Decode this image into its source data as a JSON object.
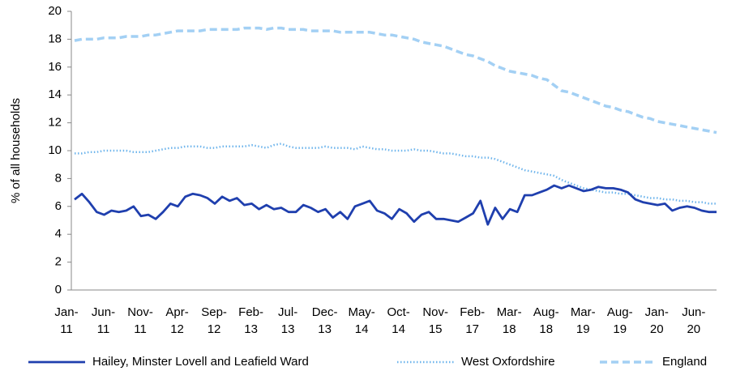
{
  "chart_data": {
    "type": "line",
    "y_label": "% of all households",
    "categories": [
      "Jan-11",
      null,
      null,
      null,
      null,
      "Jun-11",
      null,
      null,
      null,
      null,
      "Nov-11",
      null,
      null,
      null,
      null,
      "Apr-12",
      null,
      null,
      null,
      null,
      "Sep-12",
      null,
      null,
      null,
      null,
      "Feb-13",
      null,
      null,
      null,
      null,
      "Jul-13",
      null,
      null,
      null,
      null,
      "Dec-13",
      null,
      null,
      null,
      null,
      "May-14",
      null,
      null,
      null,
      null,
      "Oct-14",
      null,
      null,
      null,
      null,
      "Nov-15",
      null,
      null,
      null,
      null,
      "Feb-17",
      null,
      null,
      null,
      null,
      "Mar-18",
      null,
      null,
      null,
      null,
      "Aug-18",
      null,
      null,
      null,
      null,
      "Mar-19",
      null,
      null,
      null,
      null,
      "Aug-19",
      null,
      null,
      null,
      null,
      "Jan-20",
      null,
      null,
      null,
      null,
      "Jun-20",
      null,
      null
    ],
    "series": [
      {
        "name": "Hailey, Minster Lovell and Leafield Ward",
        "color": "#1f3fae",
        "style": "solid",
        "values": [
          6.5,
          6.9,
          6.3,
          5.6,
          5.4,
          5.7,
          5.6,
          5.7,
          6.0,
          5.3,
          5.4,
          5.1,
          5.6,
          6.2,
          6.0,
          6.7,
          6.9,
          6.8,
          6.6,
          6.2,
          6.7,
          6.4,
          6.6,
          6.1,
          6.2,
          5.8,
          6.1,
          5.8,
          5.9,
          5.6,
          5.6,
          6.1,
          5.9,
          5.6,
          5.8,
          5.2,
          5.6,
          5.1,
          6.0,
          6.2,
          6.4,
          5.7,
          5.5,
          5.1,
          5.8,
          5.5,
          4.9,
          5.4,
          5.6,
          5.1,
          5.1,
          5.0,
          4.9,
          5.2,
          5.5,
          6.4,
          4.7,
          5.9,
          5.1,
          5.8,
          5.6,
          6.8,
          6.8,
          7.0,
          7.2,
          7.5,
          7.3,
          7.5,
          7.3,
          7.1,
          7.2,
          7.4,
          7.3,
          7.3,
          7.2,
          7.0,
          6.5,
          6.3,
          6.2,
          6.1,
          6.2,
          5.7,
          5.9,
          6.0,
          5.9,
          5.7,
          5.6,
          5.6
        ]
      },
      {
        "name": "West Oxfordshire",
        "color": "#6fb5ec",
        "style": "dotted",
        "values": [
          9.8,
          9.8,
          9.9,
          9.9,
          10.0,
          10.0,
          10.0,
          10.0,
          9.9,
          9.9,
          9.9,
          10.0,
          10.1,
          10.2,
          10.2,
          10.3,
          10.3,
          10.3,
          10.2,
          10.2,
          10.3,
          10.3,
          10.3,
          10.3,
          10.4,
          10.3,
          10.2,
          10.4,
          10.5,
          10.3,
          10.2,
          10.2,
          10.2,
          10.2,
          10.3,
          10.2,
          10.2,
          10.2,
          10.1,
          10.3,
          10.2,
          10.1,
          10.1,
          10.0,
          10.0,
          10.0,
          10.1,
          10.0,
          10.0,
          9.9,
          9.8,
          9.8,
          9.7,
          9.6,
          9.6,
          9.5,
          9.5,
          9.4,
          9.2,
          9.0,
          8.8,
          8.6,
          8.5,
          8.4,
          8.3,
          8.2,
          7.9,
          7.7,
          7.5,
          7.3,
          7.2,
          7.1,
          7.0,
          7.0,
          6.9,
          6.9,
          6.8,
          6.7,
          6.6,
          6.6,
          6.5,
          6.5,
          6.4,
          6.4,
          6.3,
          6.3,
          6.2,
          6.2
        ]
      },
      {
        "name": "England",
        "color": "#a3d0f4",
        "style": "dashed",
        "values": [
          17.9,
          18.0,
          18.0,
          18.0,
          18.1,
          18.1,
          18.1,
          18.2,
          18.2,
          18.2,
          18.3,
          18.3,
          18.4,
          18.5,
          18.6,
          18.6,
          18.6,
          18.6,
          18.7,
          18.7,
          18.7,
          18.7,
          18.7,
          18.8,
          18.8,
          18.8,
          18.7,
          18.8,
          18.8,
          18.7,
          18.7,
          18.7,
          18.6,
          18.6,
          18.6,
          18.6,
          18.5,
          18.5,
          18.5,
          18.5,
          18.5,
          18.4,
          18.3,
          18.3,
          18.2,
          18.1,
          18.0,
          17.8,
          17.7,
          17.6,
          17.5,
          17.3,
          17.1,
          16.9,
          16.8,
          16.6,
          16.4,
          16.1,
          15.9,
          15.7,
          15.6,
          15.5,
          15.4,
          15.2,
          15.1,
          14.7,
          14.3,
          14.2,
          14.0,
          13.8,
          13.6,
          13.4,
          13.2,
          13.1,
          12.9,
          12.8,
          12.6,
          12.4,
          12.3,
          12.1,
          12.0,
          11.9,
          11.8,
          11.7,
          11.6,
          11.5,
          11.4,
          11.3
        ]
      }
    ],
    "ylim": [
      0,
      20
    ],
    "yticks": [
      0,
      2,
      4,
      6,
      8,
      10,
      12,
      14,
      16,
      18,
      20
    ],
    "grid": false,
    "legend": "bottom"
  }
}
